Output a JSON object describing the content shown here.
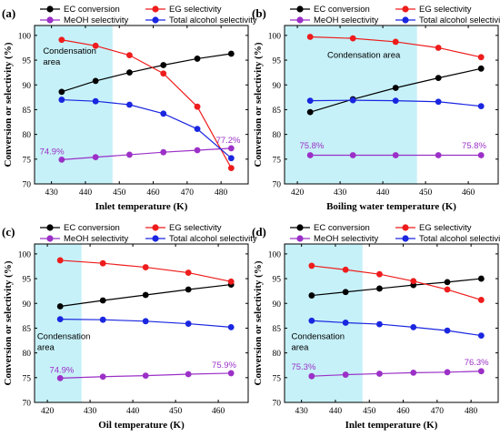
{
  "colors": {
    "ec": "#000000",
    "eg": "#ee1c1c",
    "meoh": "#9b30c7",
    "total": "#1a26e0",
    "region": "#c6f1f8"
  },
  "legend": [
    "EC conversion",
    "EG selectivity",
    "MeOH selectivity",
    "Total alcohol selectivity"
  ],
  "chart_data": [
    {
      "type": "line",
      "panel_label": "(a)",
      "xlabel": "Inlet temperature (K)",
      "ylabel": "Conversion or selectivity (%)",
      "xlim": [
        425,
        488
      ],
      "ylim": [
        70,
        102
      ],
      "xticks": [
        430,
        440,
        450,
        460,
        470,
        480
      ],
      "yticks": [
        70,
        75,
        80,
        85,
        90,
        95,
        100
      ],
      "region": {
        "x_from": 425,
        "x_to": 448,
        "label_lines": [
          "Condensation",
          "area"
        ],
        "label_x": 427.5,
        "label_y": 96.3
      },
      "x": [
        433,
        443,
        453,
        463,
        473,
        483
      ],
      "series": [
        {
          "name": "EC conversion",
          "key": "ec",
          "values": [
            88.6,
            90.8,
            92.5,
            94.0,
            95.3,
            96.3
          ]
        },
        {
          "name": "EG selectivity",
          "key": "eg",
          "values": [
            99.1,
            97.9,
            96.0,
            92.3,
            85.6,
            73.2
          ]
        },
        {
          "name": "MeOH selectivity",
          "key": "meoh",
          "values": [
            74.9,
            75.4,
            75.9,
            76.4,
            76.8,
            77.2
          ]
        },
        {
          "name": "Total alcohol selectivity",
          "key": "total",
          "values": [
            87.0,
            86.7,
            86.0,
            84.2,
            81.1,
            75.2
          ]
        }
      ],
      "annotations": [
        {
          "text": "74.9%",
          "x": 426.5,
          "y": 76.0
        },
        {
          "text": "77.2%",
          "x": 478.5,
          "y": 78.3
        }
      ]
    },
    {
      "type": "line",
      "panel_label": "(b)",
      "xlabel": "Boiling water temperature (K)",
      "ylabel": "Conversion or selectivity (%)",
      "xlim": [
        417,
        467
      ],
      "ylim": [
        70,
        102
      ],
      "xticks": [
        420,
        430,
        440,
        450,
        460
      ],
      "yticks": [
        70,
        75,
        80,
        85,
        90,
        95,
        100
      ],
      "region": {
        "x_from": 417,
        "x_to": 448,
        "label_lines": [
          "Condensation area"
        ],
        "label_x": 427,
        "label_y": 95.5
      },
      "x": [
        423,
        433,
        443,
        453,
        463
      ],
      "series": [
        {
          "name": "EC conversion",
          "key": "ec",
          "values": [
            84.5,
            87.1,
            89.4,
            91.4,
            93.3
          ]
        },
        {
          "name": "EG selectivity",
          "key": "eg",
          "values": [
            99.7,
            99.4,
            98.7,
            97.5,
            95.6
          ]
        },
        {
          "name": "MeOH selectivity",
          "key": "meoh",
          "values": [
            75.8,
            75.8,
            75.8,
            75.8,
            75.8
          ]
        },
        {
          "name": "Total alcohol selectivity",
          "key": "total",
          "values": [
            86.8,
            86.9,
            86.8,
            86.6,
            85.7
          ]
        }
      ],
      "annotations": [
        {
          "text": "75.8%",
          "x": 420.5,
          "y": 77.2
        },
        {
          "text": "75.8%",
          "x": 458.5,
          "y": 77.2
        }
      ]
    },
    {
      "type": "line",
      "panel_label": "(c)",
      "xlabel": "Oil temperature (K)",
      "ylabel": "Conversion or selectivity (%)",
      "xlim": [
        417,
        467
      ],
      "ylim": [
        70,
        102
      ],
      "xticks": [
        420,
        430,
        440,
        450,
        460
      ],
      "yticks": [
        70,
        75,
        80,
        85,
        90,
        95,
        100
      ],
      "region": {
        "x_from": 417,
        "x_to": 428,
        "label_lines": [
          "Condensation",
          "area"
        ],
        "label_x": 417.6,
        "label_y": 82.8
      },
      "x": [
        423,
        433,
        443,
        453,
        463
      ],
      "series": [
        {
          "name": "EC conversion",
          "key": "ec",
          "values": [
            89.4,
            90.6,
            91.7,
            92.8,
            93.8
          ]
        },
        {
          "name": "EG selectivity",
          "key": "eg",
          "values": [
            98.7,
            98.1,
            97.3,
            96.2,
            94.4
          ]
        },
        {
          "name": "MeOH selectivity",
          "key": "meoh",
          "values": [
            74.9,
            75.2,
            75.4,
            75.7,
            75.9
          ]
        },
        {
          "name": "Total alcohol selectivity",
          "key": "total",
          "values": [
            86.8,
            86.7,
            86.4,
            85.9,
            85.2
          ]
        }
      ],
      "annotations": [
        {
          "text": "74.9%",
          "x": 420.5,
          "y": 76.0
        },
        {
          "text": "75.9%",
          "x": 458.5,
          "y": 77.0
        }
      ]
    },
    {
      "type": "line",
      "panel_label": "(d)",
      "xlabel": "Inlet temperature (K)",
      "ylabel": "Conversion or selectivity (%)",
      "xlim": [
        425,
        488
      ],
      "ylim": [
        70,
        102
      ],
      "xticks": [
        430,
        440,
        450,
        460,
        470,
        480
      ],
      "yticks": [
        70,
        75,
        80,
        85,
        90,
        95,
        100
      ],
      "region": {
        "x_from": 425,
        "x_to": 448,
        "label_lines": [
          "Condensation",
          "area"
        ],
        "label_x": 427,
        "label_y": 82.8
      },
      "x": [
        433,
        443,
        453,
        463,
        473,
        483
      ],
      "series": [
        {
          "name": "EC conversion",
          "key": "ec",
          "values": [
            91.6,
            92.3,
            93.0,
            93.7,
            94.3,
            95.0
          ]
        },
        {
          "name": "EG selectivity",
          "key": "eg",
          "values": [
            97.6,
            96.8,
            95.9,
            94.5,
            92.8,
            90.7
          ]
        },
        {
          "name": "MeOH selectivity",
          "key": "meoh",
          "values": [
            75.3,
            75.6,
            75.8,
            76.0,
            76.1,
            76.3
          ]
        },
        {
          "name": "Total alcohol selectivity",
          "key": "total",
          "values": [
            86.5,
            86.1,
            85.8,
            85.2,
            84.5,
            83.5
          ]
        }
      ],
      "annotations": [
        {
          "text": "75.3%",
          "x": 427,
          "y": 76.6
        },
        {
          "text": "76.3%",
          "x": 478,
          "y": 77.5
        }
      ]
    }
  ]
}
